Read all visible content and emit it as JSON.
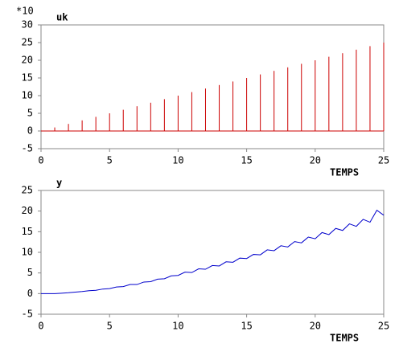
{
  "chart_data": [
    {
      "type": "stem",
      "title": "uk",
      "y_multiplier": "*10",
      "xlabel": "TEMPS",
      "color": "#cc0000",
      "x": [
        1,
        2,
        3,
        4,
        5,
        6,
        7,
        8,
        9,
        10,
        11,
        12,
        13,
        14,
        15,
        16,
        17,
        18,
        19,
        20,
        21,
        22,
        23,
        24,
        25
      ],
      "values": [
        1,
        2,
        3,
        4,
        5,
        6,
        7,
        8,
        9,
        10,
        11,
        12,
        13,
        14,
        15,
        16,
        17,
        18,
        19,
        20,
        21,
        22,
        23,
        24,
        25
      ],
      "xlim": [
        0,
        25
      ],
      "xticks": [
        0,
        5,
        10,
        15,
        20,
        25
      ],
      "ylim": [
        -5,
        30
      ],
      "yticks": [
        -5,
        0,
        5,
        10,
        15,
        20,
        25,
        30
      ],
      "grid": false
    },
    {
      "type": "line",
      "title": "y",
      "xlabel": "TEMPS",
      "color": "#0000cc",
      "x": [
        0,
        0.5,
        1,
        1.5,
        2,
        2.5,
        3,
        3.5,
        4,
        4.5,
        5,
        5.5,
        6,
        6.5,
        7,
        7.5,
        8,
        8.5,
        9,
        9.5,
        10,
        10.5,
        11,
        11.5,
        12,
        12.5,
        13,
        13.5,
        14,
        14.5,
        15,
        15.5,
        16,
        16.5,
        17,
        17.5,
        18,
        18.5,
        19,
        19.5,
        20,
        20.5,
        21,
        21.5,
        22,
        22.5,
        23,
        23.5,
        24,
        24.5,
        25
      ],
      "values": [
        0,
        0,
        0,
        0.1,
        0.2,
        0.35,
        0.5,
        0.7,
        0.8,
        1.1,
        1.2,
        1.6,
        1.7,
        2.2,
        2.2,
        2.8,
        2.9,
        3.5,
        3.6,
        4.3,
        4.4,
        5.2,
        5.1,
        6.0,
        5.9,
        6.8,
        6.7,
        7.7,
        7.6,
        8.6,
        8.5,
        9.5,
        9.4,
        10.6,
        10.4,
        11.6,
        11.3,
        12.6,
        12.3,
        13.7,
        13.3,
        14.8,
        14.3,
        15.8,
        15.3,
        16.9,
        16.3,
        18.0,
        17.3,
        20.2,
        19.0
      ],
      "xlim": [
        0,
        25
      ],
      "xticks": [
        0,
        5,
        10,
        15,
        20,
        25
      ],
      "ylim": [
        -5,
        25
      ],
      "yticks": [
        -5,
        0,
        5,
        10,
        15,
        20,
        25
      ],
      "grid": false
    }
  ]
}
